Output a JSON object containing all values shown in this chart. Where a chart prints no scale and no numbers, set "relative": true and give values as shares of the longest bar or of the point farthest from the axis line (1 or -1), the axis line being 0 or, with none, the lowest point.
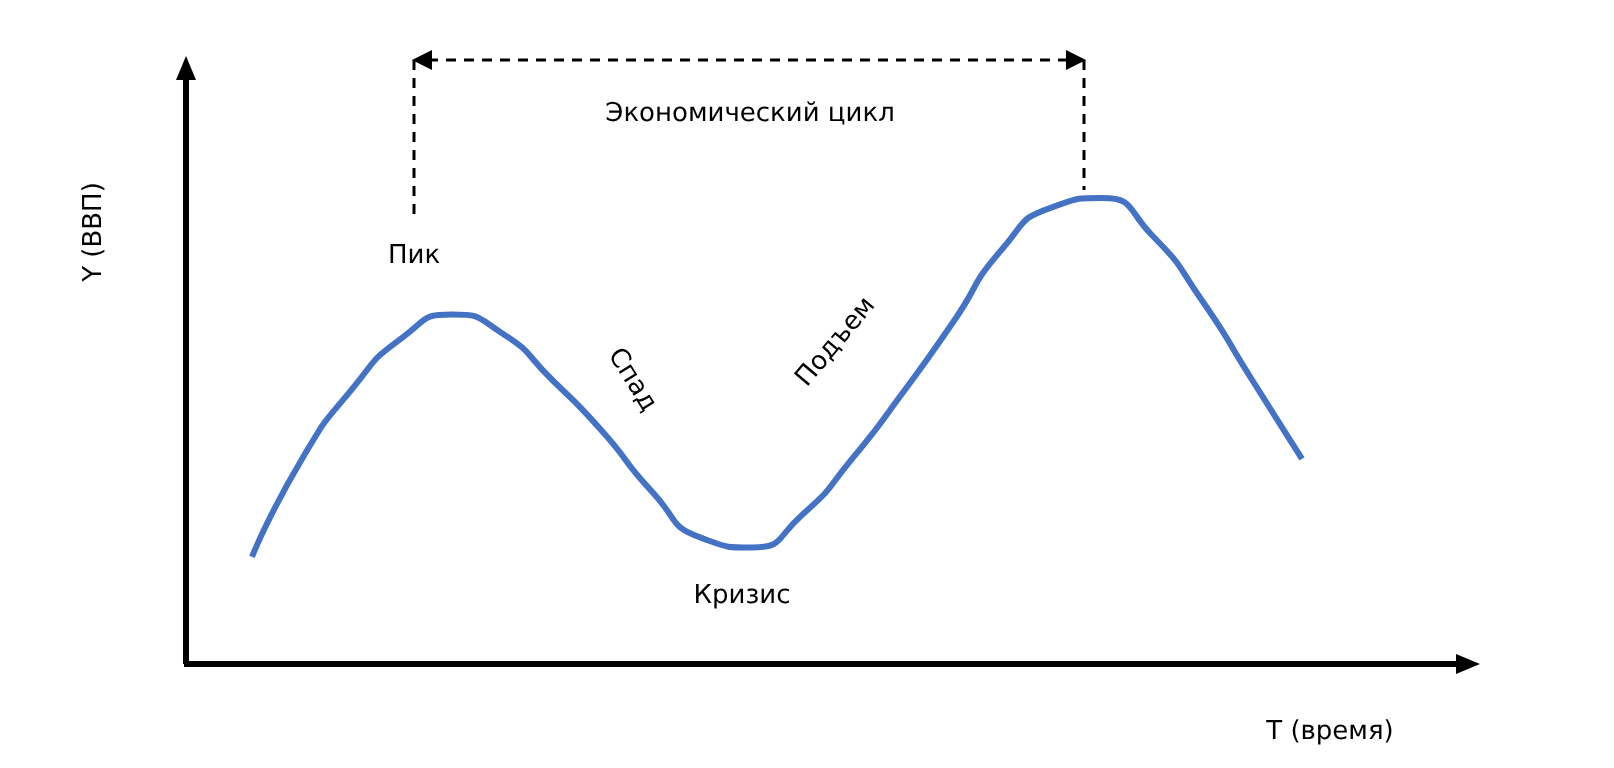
{
  "chart_data": {
    "type": "line",
    "xlabel": "T (время)",
    "ylabel": "Y (ВВП)",
    "relative": true,
    "marker": "none",
    "annotations": [
      "Экономический цикл",
      "Пик",
      "Спад",
      "Подъем",
      "Кризис"
    ],
    "categories": [
      null,
      null,
      null,
      null,
      null,
      null,
      null,
      null,
      null,
      null,
      null,
      null,
      null,
      null,
      null,
      null,
      null,
      null,
      null,
      null,
      null,
      null
    ],
    "series": [
      {
        "color": "#4472c4",
        "values": [
          0.23,
          0.44,
          0.59,
          0.7,
          0.75,
          0.71,
          0.61,
          0.5,
          0.37,
          0.27,
          0.25,
          0.32,
          0.44,
          0.58,
          0.73,
          0.89,
          0.98,
          1,
          0.92,
          0.78,
          0.61,
          0.44
        ]
      }
    ]
  }
}
